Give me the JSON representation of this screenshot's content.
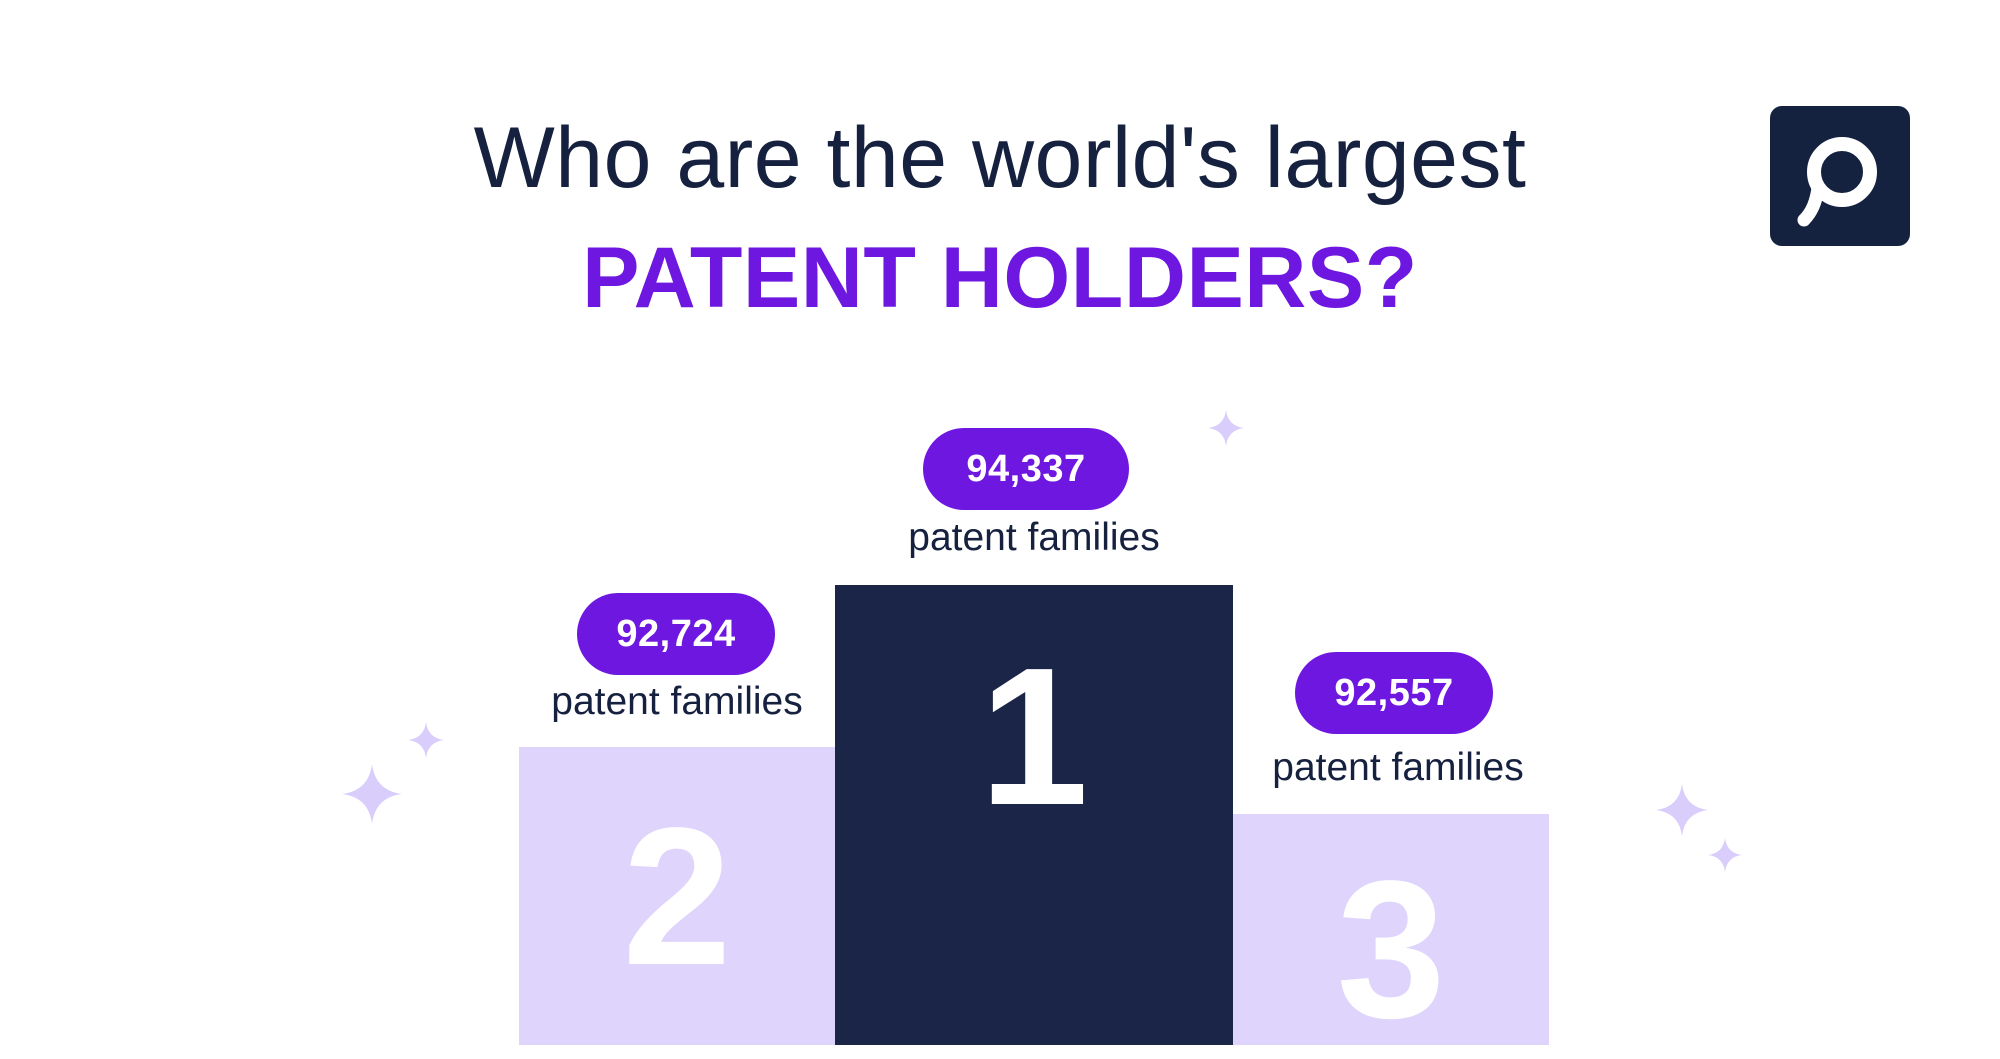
{
  "heading": {
    "line1": "Who are the world's largest",
    "line2": "PATENT HOLDERS?"
  },
  "logo": {
    "icon": "p-logo-icon"
  },
  "podium": [
    {
      "rank": "1",
      "value": "94,337",
      "caption": "patent families"
    },
    {
      "rank": "2",
      "value": "92,724",
      "caption": "patent families"
    },
    {
      "rank": "3",
      "value": "92,557",
      "caption": "patent families"
    }
  ],
  "colors": {
    "navy": "#15213f",
    "purple": "#6d17e0",
    "lavender": "#ded4fc",
    "podium_first": "#1a2547",
    "sparkle": "#d9cdfb"
  }
}
